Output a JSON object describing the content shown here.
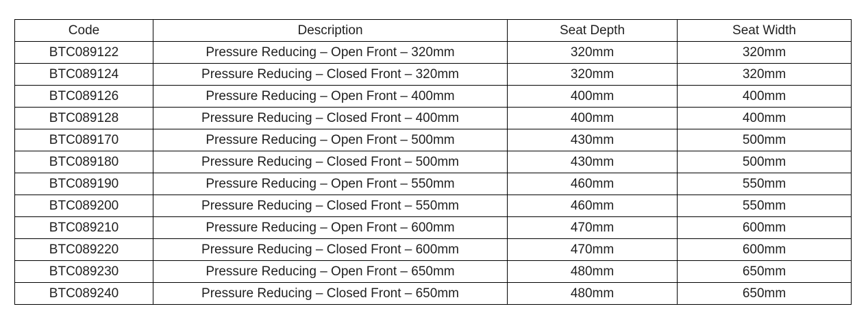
{
  "table": {
    "name": "pressure-reducing-seat-spec-table",
    "columns": [
      {
        "key": "code",
        "label": "Code"
      },
      {
        "key": "description",
        "label": "Description"
      },
      {
        "key": "seat_depth",
        "label": "Seat Depth"
      },
      {
        "key": "seat_width",
        "label": "Seat Width"
      }
    ],
    "rows": [
      {
        "code": "BTC089122",
        "description": "Pressure Reducing – Open Front – 320mm",
        "seat_depth": "320mm",
        "seat_width": "320mm"
      },
      {
        "code": "BTC089124",
        "description": "Pressure Reducing – Closed Front – 320mm",
        "seat_depth": "320mm",
        "seat_width": "320mm"
      },
      {
        "code": "BTC089126",
        "description": "Pressure Reducing – Open Front – 400mm",
        "seat_depth": "400mm",
        "seat_width": "400mm"
      },
      {
        "code": "BTC089128",
        "description": "Pressure Reducing – Closed Front – 400mm",
        "seat_depth": "400mm",
        "seat_width": "400mm"
      },
      {
        "code": "BTC089170",
        "description": "Pressure Reducing – Open Front – 500mm",
        "seat_depth": "430mm",
        "seat_width": "500mm"
      },
      {
        "code": "BTC089180",
        "description": "Pressure Reducing – Closed Front – 500mm",
        "seat_depth": "430mm",
        "seat_width": "500mm"
      },
      {
        "code": "BTC089190",
        "description": "Pressure Reducing – Open Front – 550mm",
        "seat_depth": "460mm",
        "seat_width": "550mm"
      },
      {
        "code": "BTC089200",
        "description": "Pressure Reducing – Closed Front – 550mm",
        "seat_depth": "460mm",
        "seat_width": "550mm"
      },
      {
        "code": "BTC089210",
        "description": "Pressure Reducing – Open Front – 600mm",
        "seat_depth": "470mm",
        "seat_width": "600mm"
      },
      {
        "code": "BTC089220",
        "description": "Pressure Reducing – Closed Front – 600mm",
        "seat_depth": "470mm",
        "seat_width": "600mm"
      },
      {
        "code": "BTC089230",
        "description": "Pressure Reducing – Open Front – 650mm",
        "seat_depth": "480mm",
        "seat_width": "650mm"
      },
      {
        "code": "BTC089240",
        "description": "Pressure Reducing – Closed Front – 650mm",
        "seat_depth": "480mm",
        "seat_width": "650mm"
      }
    ],
    "colors": {
      "border": "#000000",
      "text": "#1f1f1f",
      "background": "#ffffff"
    }
  }
}
